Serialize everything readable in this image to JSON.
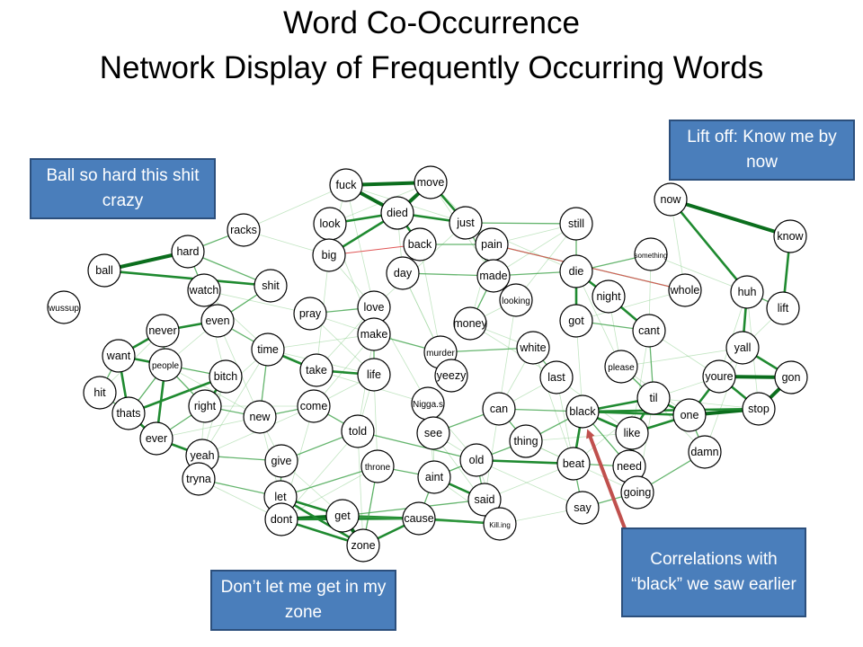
{
  "title_line1": "Word Co-Occurrence",
  "title_line2": "Network Display of Frequently Occurring Words",
  "callouts": {
    "ball": "Ball so hard this shit crazy",
    "lift": "Lift off: Know me by now",
    "zone": "Don’t let me get in my zone",
    "black": "Correlations with “black” we saw earlier"
  },
  "colors": {
    "edge_strong": "#0b6e1d",
    "edge_mid": "#3ea34a",
    "edge_light": "#8fcf8f",
    "edge_negative": "#e05555",
    "node_fill": "#ffffff",
    "node_stroke": "#000000",
    "arrow": "#c0504d",
    "callout_fill": "#4a7ebb"
  },
  "nodes": [
    "fuck",
    "move",
    "died",
    "look",
    "just",
    "still",
    "now",
    "know",
    "racks",
    "hard",
    "back",
    "pain",
    "big",
    "ball",
    "day",
    "made",
    "die",
    "something",
    "whole",
    "huh",
    "lift",
    "watch",
    "shit",
    "looking",
    "night",
    "wussup",
    "even",
    "pray",
    "love",
    "money",
    "got",
    "cant",
    "never",
    "make",
    "murder",
    "white",
    "yall",
    "want",
    "people",
    "time",
    "take",
    "life",
    "yeezy",
    "last",
    "please",
    "youre",
    "gon",
    "bitch",
    "hit",
    "right",
    "thats",
    "come",
    "Nigga.s",
    "can",
    "black",
    "til",
    "one",
    "stop",
    "new",
    "told",
    "see",
    "like",
    "ever",
    "thing",
    "damn",
    "yeah",
    "give",
    "throne",
    "old",
    "beat",
    "need",
    "tryna",
    "aint",
    "going",
    "let",
    "said",
    "say",
    "dont",
    "get",
    "cause",
    "Kill.ing",
    "zone"
  ],
  "edges": [
    [
      "fuck",
      "move",
      3
    ],
    [
      "fuck",
      "died",
      3
    ],
    [
      "move",
      "died",
      3
    ],
    [
      "died",
      "look",
      2
    ],
    [
      "died",
      "just",
      2
    ],
    [
      "move",
      "just",
      2
    ],
    [
      "died",
      "back",
      2
    ],
    [
      "died",
      "big",
      2
    ],
    [
      "look",
      "big",
      1
    ],
    [
      "just",
      "pain",
      1
    ],
    [
      "just",
      "still",
      1
    ],
    [
      "back",
      "pain",
      1
    ],
    [
      "pain",
      "made",
      1
    ],
    [
      "just",
      "made",
      1
    ],
    [
      "made",
      "die",
      1
    ],
    [
      "die",
      "still",
      1
    ],
    [
      "die",
      "got",
      2
    ],
    [
      "die",
      "night",
      2
    ],
    [
      "night",
      "cant",
      2
    ],
    [
      "got",
      "cant",
      1
    ],
    [
      "now",
      "know",
      3
    ],
    [
      "know",
      "lift",
      2
    ],
    [
      "now",
      "huh",
      2
    ],
    [
      "huh",
      "lift",
      1
    ],
    [
      "huh",
      "yall",
      2
    ],
    [
      "yall",
      "gon",
      2
    ],
    [
      "youre",
      "gon",
      3
    ],
    [
      "youre",
      "stop",
      2
    ],
    [
      "gon",
      "stop",
      3
    ],
    [
      "stop",
      "one",
      3
    ],
    [
      "one",
      "youre",
      2
    ],
    [
      "one",
      "til",
      2
    ],
    [
      "til",
      "like",
      2
    ],
    [
      "like",
      "one",
      2
    ],
    [
      "black",
      "one",
      2
    ],
    [
      "black",
      "like",
      2
    ],
    [
      "black",
      "til",
      2
    ],
    [
      "black",
      "beat",
      2
    ],
    [
      "black",
      "can",
      1
    ],
    [
      "black",
      "thing",
      1
    ],
    [
      "black",
      "need",
      1
    ],
    [
      "black",
      "stop",
      2
    ],
    [
      "like",
      "need",
      2
    ],
    [
      "beat",
      "need",
      1
    ],
    [
      "need",
      "going",
      2
    ],
    [
      "going",
      "damn",
      1
    ],
    [
      "like",
      "going",
      1
    ],
    [
      "ball",
      "hard",
      3
    ],
    [
      "ball",
      "shit",
      2
    ],
    [
      "hard",
      "watch",
      1
    ],
    [
      "hard",
      "shit",
      1
    ],
    [
      "hard",
      "racks",
      1
    ],
    [
      "shit",
      "even",
      1
    ],
    [
      "watch",
      "even",
      1
    ],
    [
      "never",
      "even",
      2
    ],
    [
      "never",
      "want",
      2
    ],
    [
      "want",
      "people",
      2
    ],
    [
      "want",
      "hit",
      1
    ],
    [
      "want",
      "thats",
      2
    ],
    [
      "never",
      "people",
      1
    ],
    [
      "people",
      "thats",
      1
    ],
    [
      "hit",
      "thats",
      1
    ],
    [
      "thats",
      "ever",
      2
    ],
    [
      "ever",
      "right",
      1
    ],
    [
      "people",
      "ever",
      2
    ],
    [
      "bitch",
      "right",
      2
    ],
    [
      "bitch",
      "people",
      1
    ],
    [
      "bitch",
      "thats",
      2
    ],
    [
      "ever",
      "yeah",
      2
    ],
    [
      "yeah",
      "tryna",
      2
    ],
    [
      "yeah",
      "give",
      1
    ],
    [
      "tryna",
      "let",
      1
    ],
    [
      "give",
      "let",
      1
    ],
    [
      "let",
      "dont",
      3
    ],
    [
      "dont",
      "get",
      3
    ],
    [
      "let",
      "get",
      2
    ],
    [
      "get",
      "zone",
      3
    ],
    [
      "dont",
      "zone",
      2
    ],
    [
      "zone",
      "cause",
      2
    ],
    [
      "cause",
      "get",
      2
    ],
    [
      "cause",
      "Kill.ing",
      2
    ],
    [
      "said",
      "Kill.ing",
      2
    ],
    [
      "aint",
      "said",
      2
    ],
    [
      "old",
      "said",
      1
    ],
    [
      "old",
      "aint",
      1
    ],
    [
      "old",
      "beat",
      2
    ],
    [
      "old",
      "thing",
      1
    ],
    [
      "can",
      "thing",
      1
    ],
    [
      "throne",
      "zone",
      1
    ],
    [
      "throne",
      "let",
      1
    ],
    [
      "time",
      "take",
      2
    ],
    [
      "take",
      "life",
      2
    ],
    [
      "time",
      "new",
      1
    ],
    [
      "new",
      "come",
      1
    ],
    [
      "come",
      "told",
      1
    ],
    [
      "told",
      "old",
      1
    ],
    [
      "make",
      "love",
      1
    ],
    [
      "love",
      "life",
      1
    ],
    [
      "make",
      "murder",
      1
    ],
    [
      "murder",
      "yeezy",
      1
    ],
    [
      "murder",
      "white",
      1
    ],
    [
      "white",
      "last",
      1
    ],
    [
      "pray",
      "love",
      1
    ],
    [
      "money",
      "made",
      1
    ],
    [
      "looking",
      "made",
      1
    ],
    [
      "something",
      "die",
      1
    ],
    [
      "whole",
      "pain",
      1
    ],
    [
      "see",
      "can",
      1
    ],
    [
      "Nigga.s",
      "see",
      1
    ],
    [
      "right",
      "new",
      1
    ],
    [
      "give",
      "told",
      1
    ],
    [
      "say",
      "beat",
      1
    ],
    [
      "say",
      "going",
      1
    ],
    [
      "please",
      "til",
      1
    ],
    [
      "cant",
      "til",
      1
    ],
    [
      "damn",
      "one",
      1
    ],
    [
      "time",
      "even",
      1
    ],
    [
      "day",
      "made",
      1
    ],
    [
      "dont",
      "cause",
      2
    ],
    [
      "let",
      "zone",
      2
    ],
    [
      "aint",
      "cause",
      1
    ],
    [
      "get",
      "Kill.ing",
      1
    ],
    [
      "said",
      "get",
      1
    ],
    [
      "throne",
      "aint",
      1
    ],
    [
      "people",
      "right",
      1
    ]
  ],
  "negative_edges": [
    [
      "pain",
      "whole"
    ],
    [
      "back",
      "big"
    ]
  ]
}
